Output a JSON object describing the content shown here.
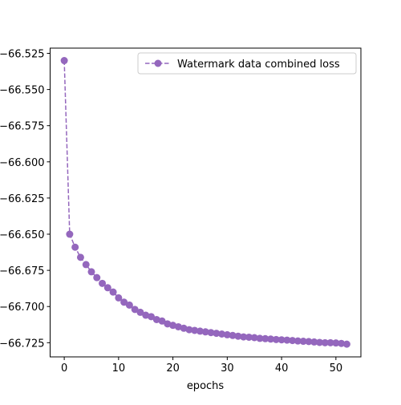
{
  "chart_data": {
    "type": "line",
    "xlabel": "epochs",
    "ylabel": "",
    "title": "",
    "xlim": [
      -2.6,
      54.6
    ],
    "ylim": [
      -66.7348,
      -66.5214
    ],
    "xticks": [
      0,
      10,
      20,
      30,
      40,
      50
    ],
    "xtick_labels": [
      "0",
      "10",
      "20",
      "30",
      "40",
      "50"
    ],
    "yticks": [
      -66.525,
      -66.55,
      -66.575,
      -66.6,
      -66.625,
      -66.65,
      -66.675,
      -66.7,
      -66.725
    ],
    "ytick_labels": [
      "−66.525",
      "−66.550",
      "−66.575",
      "−66.600",
      "−66.625",
      "−66.650",
      "−66.675",
      "−66.700",
      "−66.725"
    ],
    "grid": false,
    "legend_position": "upper right",
    "series": [
      {
        "name": "Watermark data combined loss",
        "color": "#9467bd",
        "line_style": "dashed",
        "marker": "circle",
        "x": [
          0,
          1,
          2,
          3,
          4,
          5,
          6,
          7,
          8,
          9,
          10,
          11,
          12,
          13,
          14,
          15,
          16,
          17,
          18,
          19,
          20,
          21,
          22,
          23,
          24,
          25,
          26,
          27,
          28,
          29,
          30,
          31,
          32,
          33,
          34,
          35,
          36,
          37,
          38,
          39,
          40,
          41,
          42,
          43,
          44,
          45,
          46,
          47,
          48,
          49,
          50,
          51,
          52
        ],
        "y": [
          -66.53,
          -66.65,
          -66.659,
          -66.666,
          -66.671,
          -66.676,
          -66.68,
          -66.684,
          -66.687,
          -66.69,
          -66.694,
          -66.697,
          -66.699,
          -66.702,
          -66.704,
          -66.706,
          -66.707,
          -66.709,
          -66.71,
          -66.712,
          -66.713,
          -66.714,
          -66.715,
          -66.716,
          -66.7165,
          -66.717,
          -66.7175,
          -66.718,
          -66.7185,
          -66.719,
          -66.7195,
          -66.72,
          -66.7205,
          -66.721,
          -66.7212,
          -66.7215,
          -66.722,
          -66.7222,
          -66.7225,
          -66.7228,
          -66.723,
          -66.7232,
          -66.7235,
          -66.7238,
          -66.724,
          -66.7242,
          -66.7245,
          -66.7248,
          -66.725,
          -66.725,
          -66.7252,
          -66.7255,
          -66.726
        ]
      }
    ]
  }
}
